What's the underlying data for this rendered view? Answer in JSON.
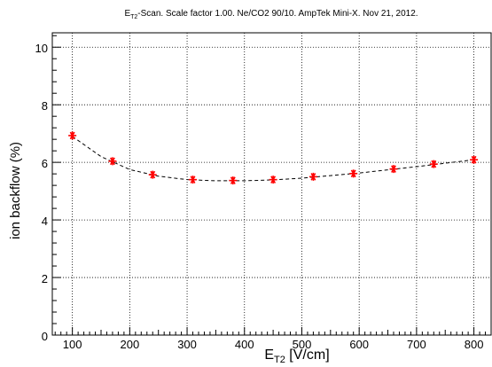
{
  "chart_data": {
    "type": "scatter",
    "title_main": "E",
    "title_sub": "T2",
    "title_rest": "-Scan. Scale factor 1.00. Ne/CO2 90/10. AmpTek Mini-X. Nov 21, 2012.",
    "xlabel_main": "E",
    "xlabel_sub": "T2",
    "xlabel_rest": " [V/cm]",
    "ylabel": "ion backflow (%)",
    "xlim": [
      65,
      830
    ],
    "ylim": [
      0,
      10.5
    ],
    "x_ticks": [
      100,
      200,
      300,
      400,
      500,
      600,
      700,
      800
    ],
    "y_ticks": [
      0,
      2,
      4,
      6,
      8,
      10
    ],
    "grid": true,
    "marker_color": "#ff0000",
    "fit_color": "#000000",
    "series": [
      {
        "x": [
          100,
          170,
          240,
          310,
          380,
          450,
          520,
          590,
          660,
          730,
          800
        ],
        "y": [
          6.93,
          6.04,
          5.57,
          5.4,
          5.37,
          5.4,
          5.5,
          5.61,
          5.77,
          5.94,
          6.09
        ]
      }
    ],
    "fit": {
      "x": [
        100,
        150,
        200,
        250,
        300,
        350,
        400,
        450,
        500,
        550,
        600,
        650,
        700,
        750,
        800
      ],
      "y": [
        6.9,
        6.2,
        5.75,
        5.52,
        5.4,
        5.36,
        5.36,
        5.39,
        5.45,
        5.54,
        5.63,
        5.74,
        5.85,
        5.97,
        6.09
      ]
    }
  }
}
